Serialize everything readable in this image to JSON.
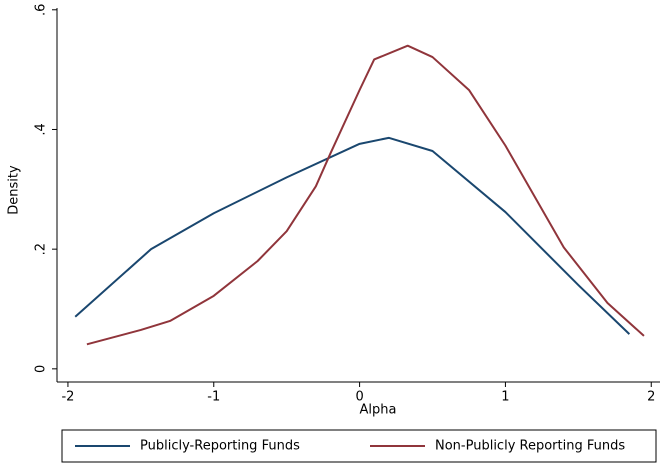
{
  "chart_data": {
    "type": "line",
    "x_label": "Alpha",
    "y_label": "Density",
    "xlim": [
      -2.075,
      2.06
    ],
    "ylim": [
      -0.022,
      0.603
    ],
    "xticks": [
      -2,
      -1,
      0,
      1,
      2
    ],
    "yticks": [
      0,
      {
        "value": 0.2,
        "label": ".2"
      },
      {
        "value": 0.4,
        "label": ".4"
      },
      {
        "value": 0.6,
        "label": ".6"
      }
    ],
    "grid": false,
    "legend": "bottom",
    "series": [
      {
        "name": "Publicly-Reporting Funds",
        "color": "#1a476f",
        "x": [
          -1.95,
          -1.43,
          -1.0,
          -0.5,
          0,
          0.2,
          0.5,
          1.0,
          1.5,
          1.85
        ],
        "values": [
          0.087,
          0.2,
          0.26,
          0.32,
          0.376,
          0.386,
          0.364,
          0.262,
          0.14,
          0.058
        ]
      },
      {
        "name": "Non-Publicly Reporting Funds",
        "color": "#90353b",
        "x": [
          -1.87,
          -1.5,
          -1.3,
          -1.0,
          -0.7,
          -0.5,
          -0.3,
          -0.2,
          0,
          0.1,
          0.33,
          0.5,
          0.75,
          1.0,
          1.4,
          1.7,
          1.95
        ],
        "values": [
          0.041,
          0.065,
          0.08,
          0.122,
          0.18,
          0.23,
          0.305,
          0.36,
          0.466,
          0.517,
          0.54,
          0.521,
          0.466,
          0.373,
          0.203,
          0.11,
          0.055
        ]
      }
    ]
  }
}
